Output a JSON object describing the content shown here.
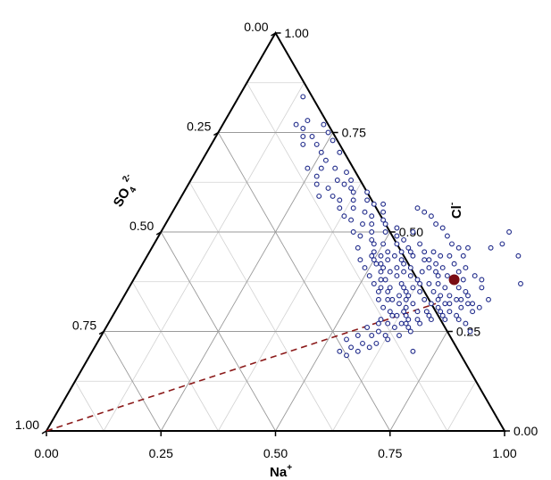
{
  "chart_data": {
    "type": "scatter",
    "subtype": "ternary",
    "title": "",
    "axes": {
      "na": {
        "label": "Na",
        "superscript": "+",
        "ticks": [
          "0.00",
          "0.25",
          "0.50",
          "0.75",
          "1.00"
        ]
      },
      "cl": {
        "label": "Cl",
        "superscript": "-",
        "ticks": [
          "0.00",
          "0.25",
          "0.50",
          "0.75",
          "1.00"
        ]
      },
      "so4": {
        "label": "SO",
        "subscript": "4",
        "superscript": "2-",
        "ticks": [
          "0.00",
          "0.25",
          "0.50",
          "0.75",
          "1.00"
        ]
      }
    },
    "grid": true,
    "grid_step": 0.125,
    "colors": {
      "points": "#1f2a8a",
      "highlight": "#7a0c14",
      "dashed_line": "#8b1a1a",
      "grid_major": "#9a9a9a",
      "grid_minor": "#d2d2d2"
    },
    "series": [
      {
        "marker": "open-circle",
        "points": [
          [
            0.16,
            0.77
          ],
          [
            0.22,
            0.77
          ],
          [
            0.18,
            0.76
          ],
          [
            0.23,
            0.72
          ],
          [
            0.2,
            0.72
          ],
          [
            0.25,
            0.7
          ],
          [
            0.27,
            0.68
          ],
          [
            0.24,
            0.66
          ],
          [
            0.27,
            0.66
          ],
          [
            0.3,
            0.66
          ],
          [
            0.28,
            0.62
          ],
          [
            0.32,
            0.63
          ],
          [
            0.35,
            0.63
          ],
          [
            0.31,
            0.61
          ],
          [
            0.38,
            0.58
          ],
          [
            0.43,
            0.57
          ],
          [
            0.45,
            0.57
          ],
          [
            0.44,
            0.54
          ],
          [
            0.48,
            0.52
          ],
          [
            0.51,
            0.51
          ],
          [
            0.56,
            0.46
          ],
          [
            0.58,
            0.44
          ],
          [
            0.61,
            0.43
          ],
          [
            0.63,
            0.41
          ],
          [
            0.65,
            0.4
          ],
          [
            0.66,
            0.39
          ],
          [
            0.67,
            0.37
          ],
          [
            0.69,
            0.36
          ],
          [
            0.71,
            0.34
          ],
          [
            0.69,
            0.33
          ],
          [
            0.72,
            0.32
          ],
          [
            0.7,
            0.31
          ],
          [
            0.73,
            0.3
          ],
          [
            0.68,
            0.3
          ],
          [
            0.58,
            0.4
          ],
          [
            0.6,
            0.39
          ],
          [
            0.62,
            0.38
          ],
          [
            0.62,
            0.36
          ],
          [
            0.64,
            0.35
          ],
          [
            0.66,
            0.33
          ],
          [
            0.68,
            0.32
          ],
          [
            0.64,
            0.32
          ],
          [
            0.66,
            0.3
          ],
          [
            0.63,
            0.3
          ],
          [
            0.65,
            0.28
          ],
          [
            0.62,
            0.29
          ],
          [
            0.64,
            0.27
          ],
          [
            0.61,
            0.27
          ],
          [
            0.63,
            0.26
          ],
          [
            0.6,
            0.25
          ],
          [
            0.62,
            0.24
          ],
          [
            0.59,
            0.24
          ],
          [
            0.58,
            0.22
          ],
          [
            0.56,
            0.21
          ],
          [
            0.54,
            0.2
          ],
          [
            0.54,
            0.23
          ],
          [
            0.56,
            0.24
          ],
          [
            0.57,
            0.26
          ],
          [
            0.59,
            0.28
          ],
          [
            0.6,
            0.3
          ],
          [
            0.61,
            0.32
          ],
          [
            0.62,
            0.34
          ],
          [
            0.58,
            0.33
          ],
          [
            0.57,
            0.35
          ],
          [
            0.55,
            0.36
          ],
          [
            0.54,
            0.38
          ],
          [
            0.53,
            0.4
          ],
          [
            0.52,
            0.42
          ],
          [
            0.5,
            0.43
          ],
          [
            0.49,
            0.45
          ],
          [
            0.48,
            0.47
          ],
          [
            0.47,
            0.48
          ],
          [
            0.46,
            0.5
          ],
          [
            0.45,
            0.52
          ],
          [
            0.43,
            0.52
          ],
          [
            0.46,
            0.55
          ],
          [
            0.41,
            0.58
          ],
          [
            0.4,
            0.6
          ],
          [
            0.37,
            0.6
          ],
          [
            0.36,
            0.61
          ],
          [
            0.34,
            0.62
          ],
          [
            0.33,
            0.65
          ],
          [
            0.29,
            0.7
          ],
          [
            0.26,
            0.73
          ],
          [
            0.24,
            0.75
          ],
          [
            0.21,
            0.74
          ],
          [
            0.19,
            0.74
          ],
          [
            0.18,
            0.78
          ],
          [
            0.14,
            0.84
          ],
          [
            0.3,
            0.59
          ],
          [
            0.27,
            0.64
          ],
          [
            0.33,
            0.59
          ],
          [
            0.39,
            0.56
          ],
          [
            0.42,
            0.55
          ],
          [
            0.47,
            0.53
          ],
          [
            0.49,
            0.5
          ],
          [
            0.52,
            0.49
          ],
          [
            0.53,
            0.47
          ],
          [
            0.55,
            0.45
          ],
          [
            0.56,
            0.43
          ],
          [
            0.57,
            0.42
          ],
          [
            0.59,
            0.41
          ],
          [
            0.51,
            0.44
          ],
          [
            0.53,
            0.43
          ],
          [
            0.5,
            0.47
          ],
          [
            0.52,
            0.45
          ],
          [
            0.54,
            0.44
          ],
          [
            0.56,
            0.41
          ],
          [
            0.57,
            0.39
          ],
          [
            0.59,
            0.37
          ],
          [
            0.6,
            0.36
          ],
          [
            0.61,
            0.35
          ],
          [
            0.62,
            0.33
          ],
          [
            0.63,
            0.31
          ],
          [
            0.64,
            0.29
          ],
          [
            0.65,
            0.27
          ],
          [
            0.67,
            0.28
          ],
          [
            0.66,
            0.26
          ],
          [
            0.68,
            0.27
          ],
          [
            0.69,
            0.29
          ],
          [
            0.7,
            0.28
          ],
          [
            0.67,
            0.25
          ],
          [
            0.65,
            0.24
          ],
          [
            0.63,
            0.23
          ],
          [
            0.61,
            0.22
          ],
          [
            0.6,
            0.21
          ],
          [
            0.58,
            0.2
          ],
          [
            0.56,
            0.19
          ],
          [
            0.59,
            0.27
          ],
          [
            0.61,
            0.29
          ],
          [
            0.58,
            0.31
          ],
          [
            0.56,
            0.33
          ],
          [
            0.55,
            0.35
          ],
          [
            0.53,
            0.37
          ],
          [
            0.51,
            0.39
          ],
          [
            0.49,
            0.41
          ],
          [
            0.47,
            0.43
          ],
          [
            0.45,
            0.46
          ],
          [
            0.44,
            0.49
          ],
          [
            0.42,
            0.5
          ],
          [
            0.4,
            0.53
          ],
          [
            0.38,
            0.54
          ],
          [
            0.36,
            0.56
          ],
          [
            0.35,
            0.58
          ],
          [
            0.57,
            0.45
          ],
          [
            0.54,
            0.48
          ],
          [
            0.58,
            0.47
          ],
          [
            0.6,
            0.45
          ],
          [
            0.62,
            0.43
          ],
          [
            0.64,
            0.42
          ],
          [
            0.66,
            0.41
          ],
          [
            0.68,
            0.39
          ],
          [
            0.7,
            0.38
          ],
          [
            0.72,
            0.36
          ],
          [
            0.74,
            0.35
          ],
          [
            0.73,
            0.33
          ],
          [
            0.71,
            0.3
          ],
          [
            0.75,
            0.31
          ],
          [
            0.55,
            0.4
          ],
          [
            0.62,
            0.4
          ],
          [
            0.67,
            0.35
          ],
          [
            0.69,
            0.34
          ],
          [
            0.71,
            0.32
          ],
          [
            0.74,
            0.33
          ],
          [
            0.72,
            0.29
          ],
          [
            0.76,
            0.32
          ],
          [
            0.75,
            0.29
          ],
          [
            0.63,
            0.37
          ],
          [
            0.65,
            0.37
          ],
          [
            0.6,
            0.34
          ],
          [
            0.59,
            0.33
          ],
          [
            0.57,
            0.36
          ],
          [
            0.55,
            0.38
          ],
          [
            0.53,
            0.41
          ],
          [
            0.51,
            0.42
          ],
          [
            0.49,
            0.44
          ],
          [
            0.62,
            0.45
          ],
          [
            0.64,
            0.44
          ],
          [
            0.66,
            0.44
          ],
          [
            0.68,
            0.42
          ],
          [
            0.7,
            0.4
          ],
          [
            0.72,
            0.38
          ],
          [
            0.75,
            0.34
          ],
          [
            0.77,
            0.32
          ],
          [
            0.73,
            0.28
          ],
          [
            0.76,
            0.28
          ],
          [
            0.78,
            0.3
          ],
          [
            0.79,
            0.31
          ],
          [
            0.8,
            0.33
          ],
          [
            0.77,
            0.36
          ],
          [
            0.76,
            0.38
          ],
          [
            0.74,
            0.39
          ],
          [
            0.71,
            0.41
          ],
          [
            0.69,
            0.44
          ],
          [
            0.67,
            0.46
          ],
          [
            0.65,
            0.47
          ],
          [
            0.63,
            0.49
          ],
          [
            0.61,
            0.51
          ],
          [
            0.59,
            0.52
          ],
          [
            0.57,
            0.54
          ],
          [
            0.55,
            0.55
          ],
          [
            0.53,
            0.56
          ],
          [
            0.55,
            0.5
          ],
          [
            0.81,
            0.44
          ],
          [
            0.74,
            0.46
          ],
          [
            0.76,
            0.47
          ],
          [
            0.76,
            0.5
          ],
          [
            0.95,
            0.32
          ],
          [
            0.85,
            0.37
          ],
          [
            0.69,
            0.46
          ],
          [
            0.8,
            0.25
          ],
          [
            0.7,
            0.2
          ],
          [
            0.78,
            0.27
          ]
        ]
      }
    ],
    "highlight_point": {
      "na": 0.7,
      "cl": 0.38
    },
    "reference_line": {
      "from": {
        "na": 0.0,
        "cl": 0.0
      },
      "to": {
        "na": 0.69,
        "cl": 0.32
      },
      "style": "dashed"
    }
  }
}
